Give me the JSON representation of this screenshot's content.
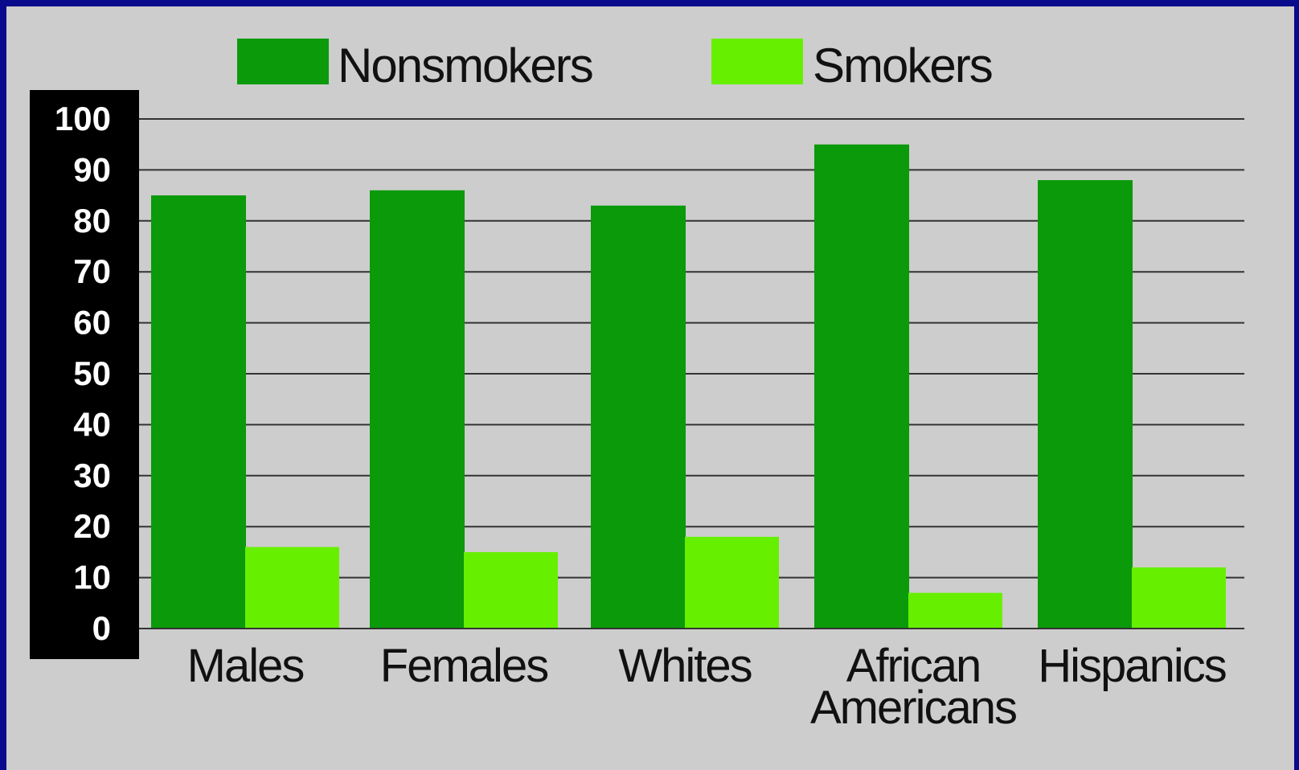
{
  "chart_data": {
    "type": "bar",
    "categories": [
      "Males",
      "Females",
      "Whites",
      "African Americans",
      "Hispanics"
    ],
    "category_lines": [
      [
        "Males"
      ],
      [
        "Females"
      ],
      [
        "Whites"
      ],
      [
        "African",
        "Americans"
      ],
      [
        "Hispanics"
      ]
    ],
    "series": [
      {
        "name": "Nonsmokers",
        "color": "#0a9a0a",
        "values": [
          85,
          86,
          83,
          95,
          88
        ]
      },
      {
        "name": "Smokers",
        "color": "#66f000",
        "values": [
          16,
          15,
          18,
          7,
          12
        ]
      }
    ],
    "ylim": [
      0,
      100
    ],
    "yticks": [
      "0",
      "10",
      "20",
      "30",
      "40",
      "50",
      "60",
      "70",
      "80",
      "90",
      "100"
    ],
    "grid": true,
    "legend": "top",
    "colors": {
      "background": "#cdcdcd",
      "frame": "#0a0a8c",
      "axis_panel": "#000000",
      "gridline": "#333333"
    }
  }
}
